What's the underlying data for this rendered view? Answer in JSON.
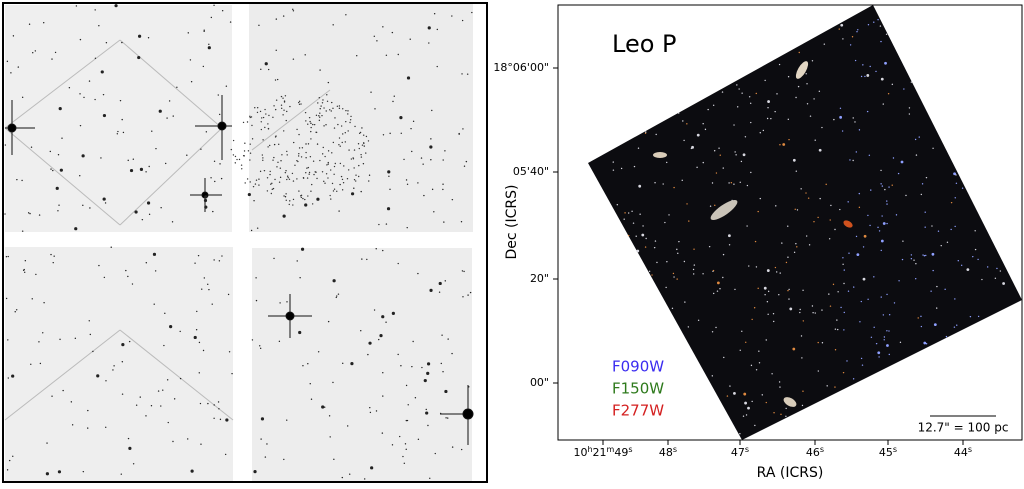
{
  "right_panel": {
    "title": "Leo P",
    "x_label": "RA (ICRS)",
    "y_label": "Dec (ICRS)",
    "x_tick_labels": [
      "10h21m49s",
      "48s",
      "47s",
      "46s",
      "45s",
      "44s"
    ],
    "y_tick_labels": [
      "18°06'00\"",
      "05'40\"",
      "20\"",
      "00\""
    ],
    "filters": [
      {
        "name": "F090W",
        "color": "#3b2cf0"
      },
      {
        "name": "F150W",
        "color": "#2e7a1c"
      },
      {
        "name": "F277W",
        "color": "#d42020"
      }
    ],
    "scale_bar": "12.7\" = 100 pc"
  }
}
